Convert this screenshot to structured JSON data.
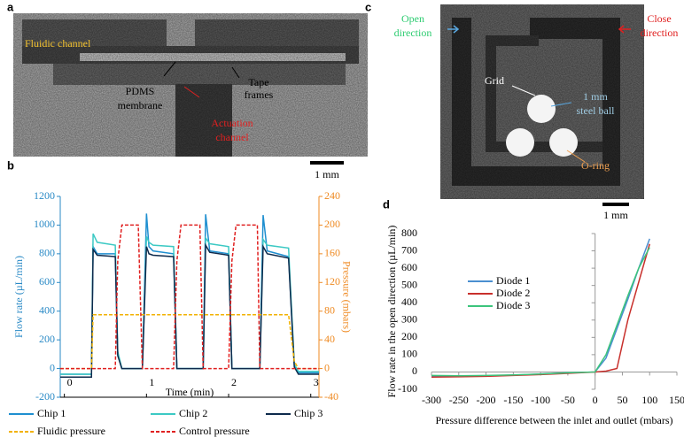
{
  "figure": {
    "panel_labels": [
      "a",
      "b",
      "c",
      "d"
    ],
    "panel_a": {
      "fluidic_channel": "Fluidic channel",
      "pdms_membrane": [
        "PDMS",
        "membrane"
      ],
      "tape_frames": [
        "Tape",
        "frames"
      ],
      "actuation_channel": [
        "Actuation",
        "channel"
      ],
      "scale_bar": "1 mm"
    },
    "panel_c": {
      "open_direction": [
        "Open",
        "direction"
      ],
      "close_direction": [
        "Close",
        "direction"
      ],
      "grid": "Grid",
      "steel_ball": [
        "1 mm",
        "steel ball"
      ],
      "o_ring": "O-ring",
      "scale_bar": "1 mm"
    }
  },
  "chart_data": [
    {
      "type": "line",
      "xlabel": "Time (min)",
      "ylabel": "Flow rate (µL/min)",
      "y2label": "Pressure (mbars)",
      "x": [
        -0.05,
        0.33,
        0.35,
        0.4,
        0.62,
        0.65,
        0.7,
        0.9,
        0.95,
        1.0,
        1.03,
        1.08,
        1.33,
        1.37,
        1.42,
        1.65,
        1.69,
        1.72,
        1.77,
        2.0,
        2.04,
        2.09,
        2.35,
        2.38,
        2.42,
        2.47,
        2.73,
        2.8,
        2.85,
        3.1
      ],
      "xlim": [
        -0.05,
        3.1
      ],
      "xticks": [
        0,
        1,
        2,
        3
      ],
      "ylim": [
        -200,
        1200
      ],
      "yticks": [
        -200,
        0,
        200,
        400,
        600,
        800,
        1000,
        1200
      ],
      "y2lim": [
        -40,
        240
      ],
      "y2ticks": [
        -40,
        0,
        40,
        80,
        120,
        160,
        200,
        240
      ],
      "axis_colors": {
        "y": "#2a8ac6",
        "y2": "#ef8a22"
      },
      "legend": "bottom",
      "series": [
        {
          "name": "Chip 1",
          "color": "#1f8fd0",
          "style": "solid",
          "values": [
            -40,
            -40,
            850,
            800,
            800,
            100,
            0,
            0,
            0,
            1080,
            850,
            820,
            800,
            0,
            0,
            0,
            0,
            1075,
            820,
            800,
            0,
            0,
            0,
            0,
            1070,
            820,
            780,
            20,
            -30,
            -30
          ]
        },
        {
          "name": "Chip 2",
          "color": "#3cc9c4",
          "style": "solid",
          "values": [
            -40,
            -40,
            940,
            880,
            860,
            120,
            0,
            0,
            0,
            920,
            880,
            860,
            850,
            0,
            0,
            0,
            0,
            910,
            870,
            850,
            0,
            0,
            0,
            0,
            900,
            860,
            840,
            30,
            -20,
            -20
          ]
        },
        {
          "name": "Chip 3",
          "color": "#0e2a4c",
          "style": "solid",
          "values": [
            -60,
            -60,
            830,
            790,
            780,
            90,
            0,
            0,
            0,
            850,
            800,
            790,
            780,
            0,
            0,
            0,
            0,
            860,
            810,
            790,
            0,
            0,
            0,
            0,
            850,
            800,
            770,
            10,
            -40,
            -40
          ]
        },
        {
          "name": "Fluidic pressure",
          "color": "#f2b200",
          "style": "dashed",
          "axis": "y2",
          "values": [
            0,
            0,
            75,
            75,
            75,
            75,
            75,
            75,
            75,
            75,
            75,
            75,
            75,
            75,
            75,
            75,
            75,
            75,
            75,
            75,
            75,
            75,
            75,
            75,
            75,
            75,
            75,
            10,
            0,
            0
          ]
        },
        {
          "name": "Control pressure",
          "color": "#e02020",
          "style": "dashed",
          "axis": "y2",
          "values": [
            0,
            0,
            0,
            0,
            0,
            150,
            200,
            200,
            0,
            0,
            0,
            0,
            0,
            150,
            200,
            200,
            0,
            0,
            0,
            0,
            150,
            200,
            200,
            0,
            0,
            0,
            0,
            0,
            0,
            0
          ]
        }
      ]
    },
    {
      "type": "line",
      "xlabel": "Pressure difference between the inlet and outlet (mbars)",
      "ylabel": "Flow rate in the open direction (µL/min)",
      "x": [
        -300,
        -250,
        -200,
        -150,
        -100,
        -50,
        0,
        20,
        40,
        60,
        80,
        100
      ],
      "xlim": [
        -300,
        150
      ],
      "xticks": [
        -300,
        -250,
        -200,
        -150,
        -100,
        -50,
        0,
        50,
        100,
        150
      ],
      "ylim": [
        -100,
        800
      ],
      "yticks": [
        -100,
        0,
        100,
        200,
        300,
        400,
        500,
        600,
        700,
        800
      ],
      "axes_cross_at_origin": true,
      "legend": "center-left",
      "series": [
        {
          "name": "Diode 1",
          "color": "#4a8fd0",
          "style": "solid",
          "values": [
            -25,
            -25,
            -22,
            -18,
            -12,
            -5,
            0,
            80,
            250,
            420,
            600,
            770
          ]
        },
        {
          "name": "Diode 2",
          "color": "#c8302c",
          "style": "solid",
          "values": [
            -30,
            -28,
            -25,
            -20,
            -15,
            -8,
            0,
            5,
            20,
            300,
            520,
            740
          ]
        },
        {
          "name": "Diode 3",
          "color": "#3cc47c",
          "style": "solid",
          "values": [
            -20,
            -22,
            -20,
            -17,
            -12,
            -5,
            0,
            100,
            270,
            440,
            600,
            720
          ]
        }
      ]
    }
  ]
}
